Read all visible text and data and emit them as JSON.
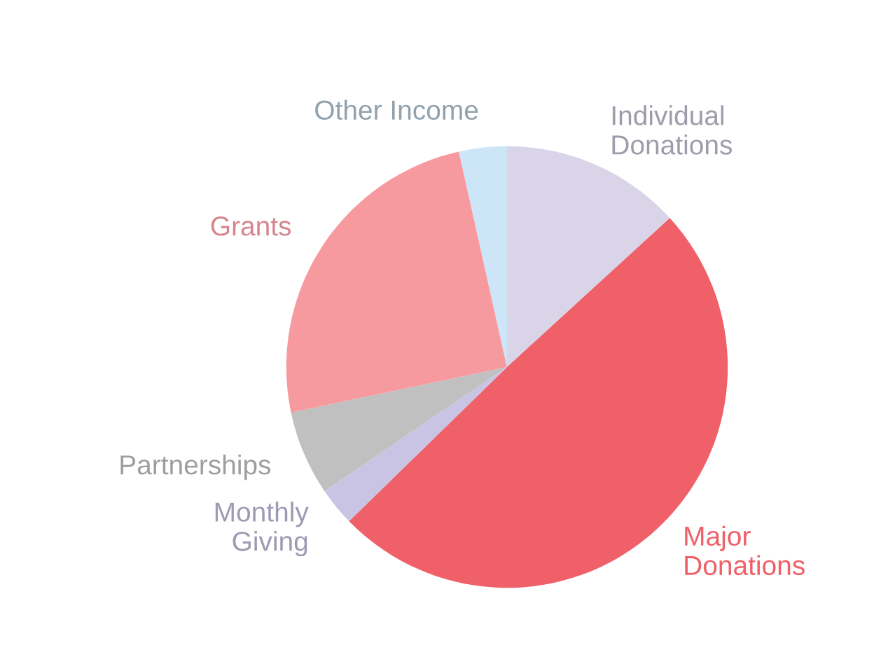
{
  "chart_data": {
    "type": "pie",
    "categories": [
      "Individual\nDonations",
      "Major\nDonations",
      "Monthly\nGiving",
      "Partnerships",
      "Grants",
      "Other Income"
    ],
    "values": [
      13.2,
      49.5,
      2.8,
      6.2,
      24.8,
      3.5
    ],
    "colors": [
      "#d9d4e8",
      "#ef6068",
      "#c9c4e4",
      "#c0c0c0",
      "#f79aa0",
      "#cde6f7"
    ],
    "legend": false
  }
}
